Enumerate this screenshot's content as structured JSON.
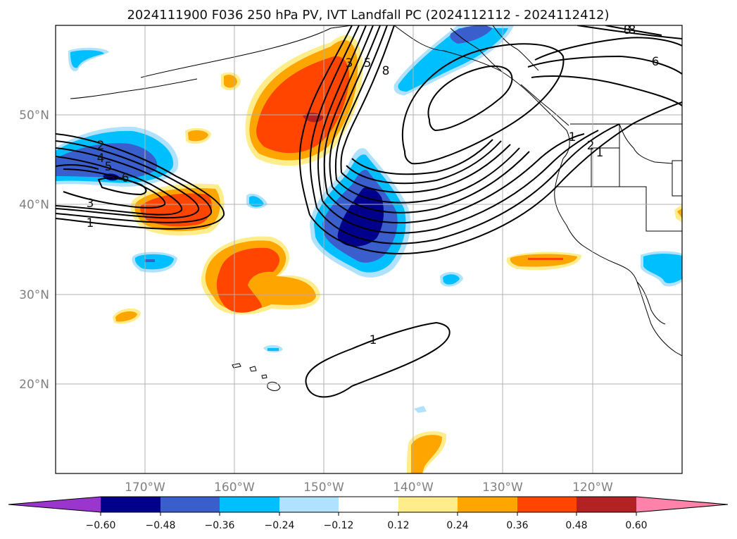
{
  "title": "2024111900 F036 250 hPa PV, IVT Landfall PC (2024112112 - 2024112412)",
  "map": {
    "lon_range": [
      -180,
      -110
    ],
    "lat_range": [
      10,
      60
    ],
    "lon_gridlines": [
      -170,
      -160,
      -150,
      -140,
      -130,
      -120
    ],
    "lat_gridlines": [
      20,
      30,
      40,
      50
    ],
    "lon_labels": [
      "170°W",
      "160°W",
      "150°W",
      "140°W",
      "130°W",
      "120°W"
    ],
    "lat_labels": [
      "20°N",
      "30°N",
      "40°N",
      "50°N"
    ]
  },
  "colorbar": {
    "tick_labels": [
      "−0.60",
      "−0.48",
      "−0.36",
      "−0.24",
      "−0.12",
      "0.12",
      "0.24",
      "0.36",
      "0.48",
      "0.60"
    ],
    "colors": [
      "#9a36cd",
      "#00008b",
      "#3a5fcd",
      "#00bfff",
      "#b0e2ff",
      "#ffffff",
      "#ffec8b",
      "#ffa500",
      "#ff4500",
      "#b22222",
      "#ff82ab"
    ]
  },
  "contour_labels": [
    "1",
    "2",
    "3",
    "4",
    "5",
    "6",
    "8",
    "1",
    "3",
    "5",
    "8",
    "2",
    "1",
    "6",
    "8",
    "1"
  ]
}
